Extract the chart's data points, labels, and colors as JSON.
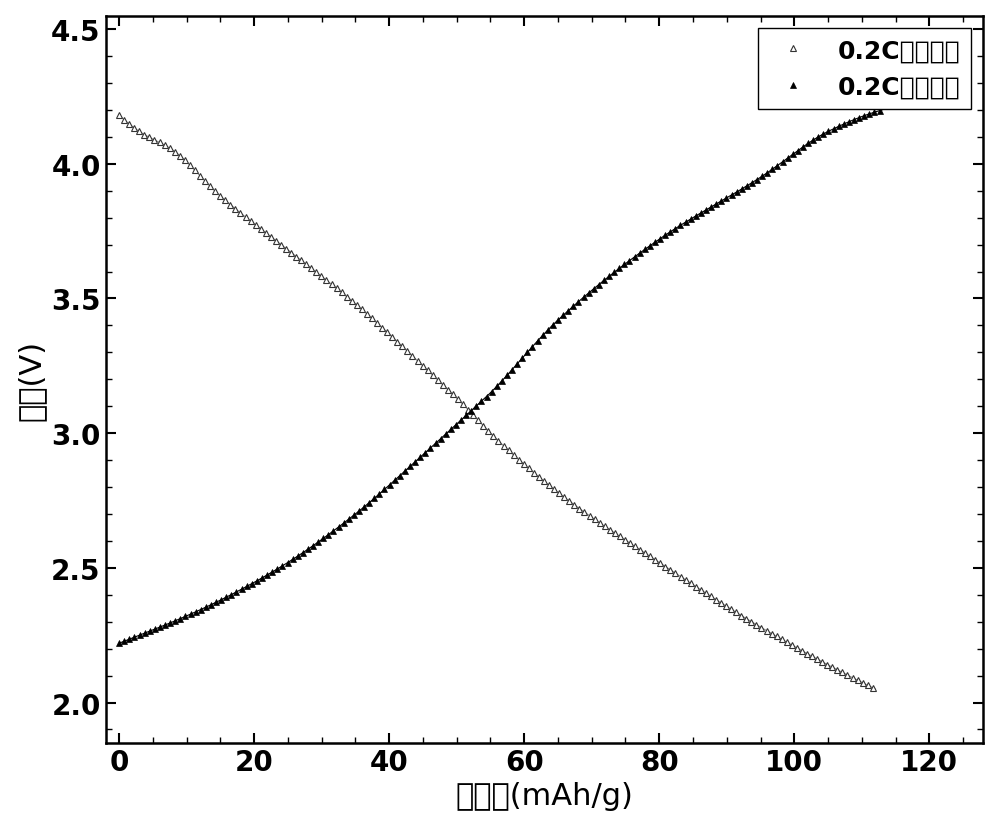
{
  "title": "",
  "xlabel": "比容量(mAh/g)",
  "ylabel": "电压(V)",
  "xlim": [
    -2,
    128
  ],
  "ylim": [
    1.85,
    4.55
  ],
  "xticks": [
    0,
    20,
    40,
    60,
    80,
    100,
    120
  ],
  "yticks": [
    2.0,
    2.5,
    3.0,
    3.5,
    4.0,
    4.5
  ],
  "charge_label": "0.2C充电电压",
  "discharge_label": "0.2C放电电压",
  "background_color": "#ffffff",
  "charge_color": "#888888",
  "discharge_color": "#000000",
  "xlabel_fontsize": 22,
  "ylabel_fontsize": 22,
  "tick_fontsize": 20,
  "legend_fontsize": 18,
  "charge_kp_x": [
    0,
    3,
    8,
    15,
    25,
    35,
    45,
    52,
    55,
    65,
    80,
    95,
    112
  ],
  "charge_kp_y": [
    4.18,
    4.12,
    4.05,
    3.88,
    3.68,
    3.48,
    3.25,
    3.08,
    3.0,
    2.78,
    2.52,
    2.28,
    2.05
  ],
  "discharge_kp_x": [
    0,
    3,
    8,
    15,
    25,
    35,
    45,
    52,
    55,
    65,
    80,
    95,
    105,
    113
  ],
  "discharge_kp_y": [
    2.22,
    2.25,
    2.3,
    2.38,
    2.52,
    2.7,
    2.92,
    3.08,
    3.15,
    3.42,
    3.72,
    3.95,
    4.12,
    4.2
  ]
}
